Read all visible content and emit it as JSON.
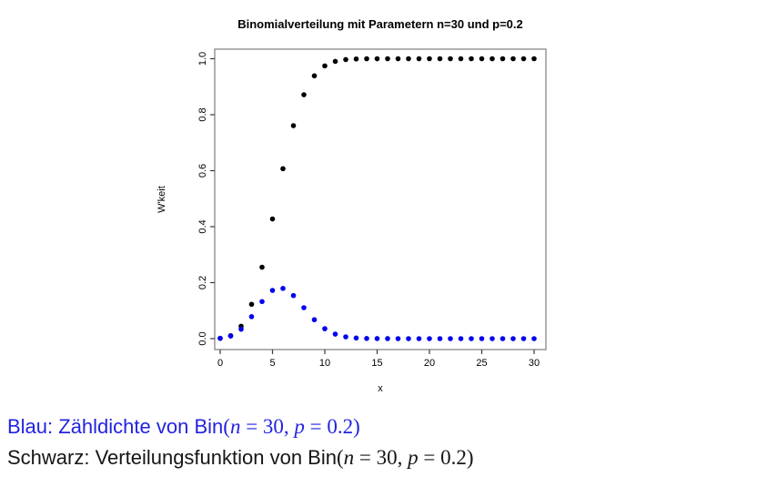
{
  "chart_data": {
    "type": "scatter",
    "title": "Binomialverteilung mit Parametern n=30 und p=0.2",
    "xlabel": "x",
    "ylabel": "W'keit",
    "xlim": [
      0,
      30
    ],
    "ylim": [
      0.0,
      1.0
    ],
    "grid": false,
    "legend_position": "none",
    "x_ticks": [
      0,
      5,
      10,
      15,
      20,
      25,
      30
    ],
    "y_ticks": [
      0.0,
      0.2,
      0.4,
      0.6,
      0.8,
      1.0
    ],
    "y_tick_labels": [
      "0.0",
      "0.2",
      "0.4",
      "0.6",
      "0.8",
      "1.0"
    ],
    "x": [
      0,
      1,
      2,
      3,
      4,
      5,
      6,
      7,
      8,
      9,
      10,
      11,
      12,
      13,
      14,
      15,
      16,
      17,
      18,
      19,
      20,
      21,
      22,
      23,
      24,
      25,
      26,
      27,
      28,
      29,
      30
    ],
    "series": [
      {
        "name": "Verteilungsfunktion (CDF) von Bin(n=30, p=0.2)",
        "color": "#000000",
        "values": [
          0.001238,
          0.010523,
          0.044179,
          0.122712,
          0.255235,
          0.427513,
          0.606971,
          0.760793,
          0.871352,
          0.938916,
          0.974387,
          0.990511,
          0.996893,
          0.999102,
          0.999773,
          0.999952,
          0.999994,
          0.999999,
          1,
          1,
          1,
          1,
          1,
          1,
          1,
          1,
          1,
          1,
          1,
          1,
          1
        ]
      },
      {
        "name": "Zähldichte (PMF) von Bin(n=30, p=0.2)",
        "color": "#0000ee",
        "values": [
          0.001238,
          0.009285,
          0.033656,
          0.078532,
          0.132522,
          0.172279,
          0.179457,
          0.15382,
          0.110559,
          0.067565,
          0.035471,
          0.016124,
          0.006382,
          0.002209,
          0.000671,
          0.000179,
          4.2e-05,
          9e-06,
          2e-06,
          0,
          0,
          0,
          0,
          0,
          0,
          0,
          0,
          0,
          0,
          0,
          0
        ]
      }
    ]
  },
  "captions": {
    "pmf": {
      "color": "#2323e0",
      "label": "Blau: Zähldichte von Bin",
      "open": "(",
      "var1": "n",
      "rel1": " = 30, ",
      "var2": "p",
      "rel2": " = 0.2",
      "close": ")"
    },
    "cdf": {
      "color": "#161616",
      "label": "Schwarz: Verteilungsfunktion von Bin",
      "open": "(",
      "var1": "n",
      "rel1": " = 30, ",
      "var2": "p",
      "rel2": " = 0.2",
      "close": ")"
    }
  }
}
